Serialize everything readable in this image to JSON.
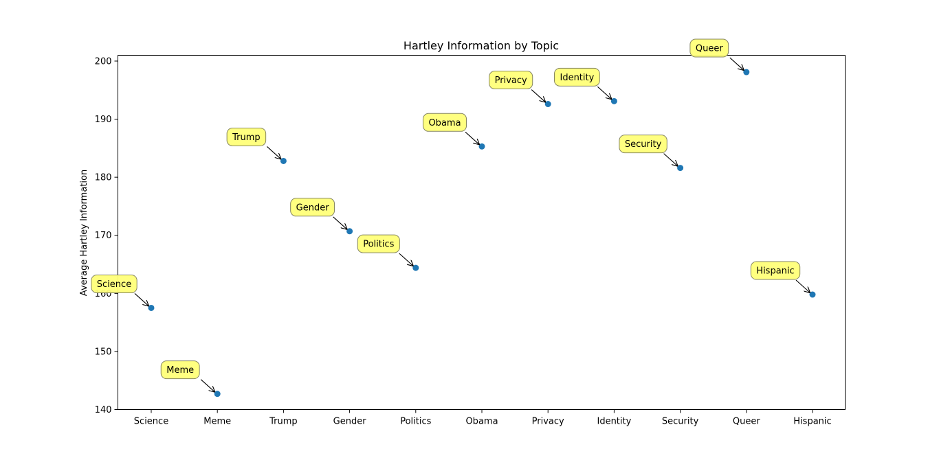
{
  "chart_data": {
    "type": "scatter",
    "title": "Hartley Information by Topic",
    "xlabel": "",
    "ylabel": "Average Hartley Information",
    "categories": [
      "Science",
      "Meme",
      "Trump",
      "Gender",
      "Politics",
      "Obama",
      "Privacy",
      "Identity",
      "Security",
      "Queer",
      "Hispanic"
    ],
    "values": [
      157.5,
      142.7,
      182.8,
      170.7,
      164.4,
      185.3,
      192.6,
      193.1,
      181.6,
      198.1,
      159.8
    ],
    "annotations": [
      "Science",
      "Meme",
      "Trump",
      "Gender",
      "Politics",
      "Obama",
      "Privacy",
      "Identity",
      "Security",
      "Queer",
      "Hispanic"
    ],
    "ylim": [
      140,
      201
    ],
    "yticks": [
      140,
      150,
      160,
      170,
      180,
      190,
      200
    ],
    "grid": false,
    "marker_color": "#1f77b4",
    "annotation_box_color": "#ffff7a"
  }
}
